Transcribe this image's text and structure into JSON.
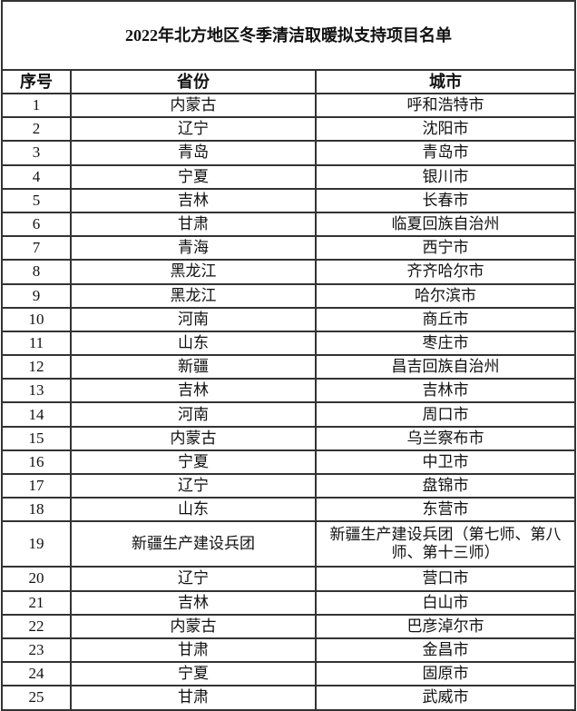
{
  "title": "2022年北方地区冬季清洁取暖拟支持项目名单",
  "headers": [
    "序号",
    "省份",
    "城市"
  ],
  "rows": [
    [
      "1",
      "内蒙古",
      "呼和浩特市"
    ],
    [
      "2",
      "辽宁",
      "沈阳市"
    ],
    [
      "3",
      "青岛",
      "青岛市"
    ],
    [
      "4",
      "宁夏",
      "银川市"
    ],
    [
      "5",
      "吉林",
      "长春市"
    ],
    [
      "6",
      "甘肃",
      "临夏回族自治州"
    ],
    [
      "7",
      "青海",
      "西宁市"
    ],
    [
      "8",
      "黑龙江",
      "齐齐哈尔市"
    ],
    [
      "9",
      "黑龙江",
      "哈尔滨市"
    ],
    [
      "10",
      "河南",
      "商丘市"
    ],
    [
      "11",
      "山东",
      "枣庄市"
    ],
    [
      "12",
      "新疆",
      "昌吉回族自治州"
    ],
    [
      "13",
      "吉林",
      "吉林市"
    ],
    [
      "14",
      "河南",
      "周口市"
    ],
    [
      "15",
      "内蒙古",
      "乌兰察布市"
    ],
    [
      "16",
      "宁夏",
      "中卫市"
    ],
    [
      "17",
      "辽宁",
      "盘锦市"
    ],
    [
      "18",
      "山东",
      "东营市"
    ],
    [
      "19",
      "新疆生产建设兵团",
      "新疆生产建设兵团（第七师、第八师、第十三师）"
    ],
    [
      "20",
      "辽宁",
      "营口市"
    ],
    [
      "21",
      "吉林",
      "白山市"
    ],
    [
      "22",
      "内蒙古",
      "巴彦淖尔市"
    ],
    [
      "23",
      "甘肃",
      "金昌市"
    ],
    [
      "24",
      "宁夏",
      "固原市"
    ],
    [
      "25",
      "甘肃",
      "武威市"
    ]
  ]
}
